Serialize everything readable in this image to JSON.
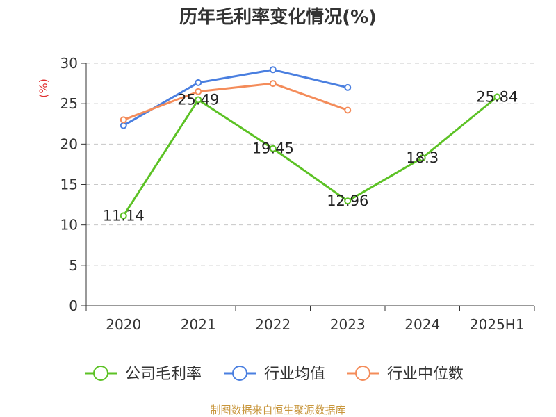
{
  "chart_data": {
    "type": "line",
    "title": "历年毛利率变化情况(%)",
    "ylabel": "(%)",
    "categories": [
      "2020",
      "2021",
      "2022",
      "2023",
      "2024",
      "2025H1"
    ],
    "ylim": [
      0,
      30
    ],
    "yticks": [
      0,
      5,
      10,
      15,
      20,
      25,
      30
    ],
    "grid": true,
    "legend_position": "bottom",
    "series": [
      {
        "name": "公司毛利率",
        "color": "#5cc225",
        "values": [
          11.14,
          25.49,
          19.45,
          12.96,
          18.3,
          25.84
        ],
        "labels": [
          "11.14",
          "25.49",
          "19.45",
          "12.96",
          "18.3",
          "25.84"
        ]
      },
      {
        "name": "行业均值",
        "color": "#4a7fe0",
        "values": [
          22.3,
          27.6,
          29.2,
          27.0,
          null,
          null
        ]
      },
      {
        "name": "行业中位数",
        "color": "#f48c5a",
        "values": [
          23.0,
          26.5,
          27.5,
          24.2,
          null,
          null
        ]
      }
    ]
  },
  "source": "制图数据来自恒生聚源数据库"
}
